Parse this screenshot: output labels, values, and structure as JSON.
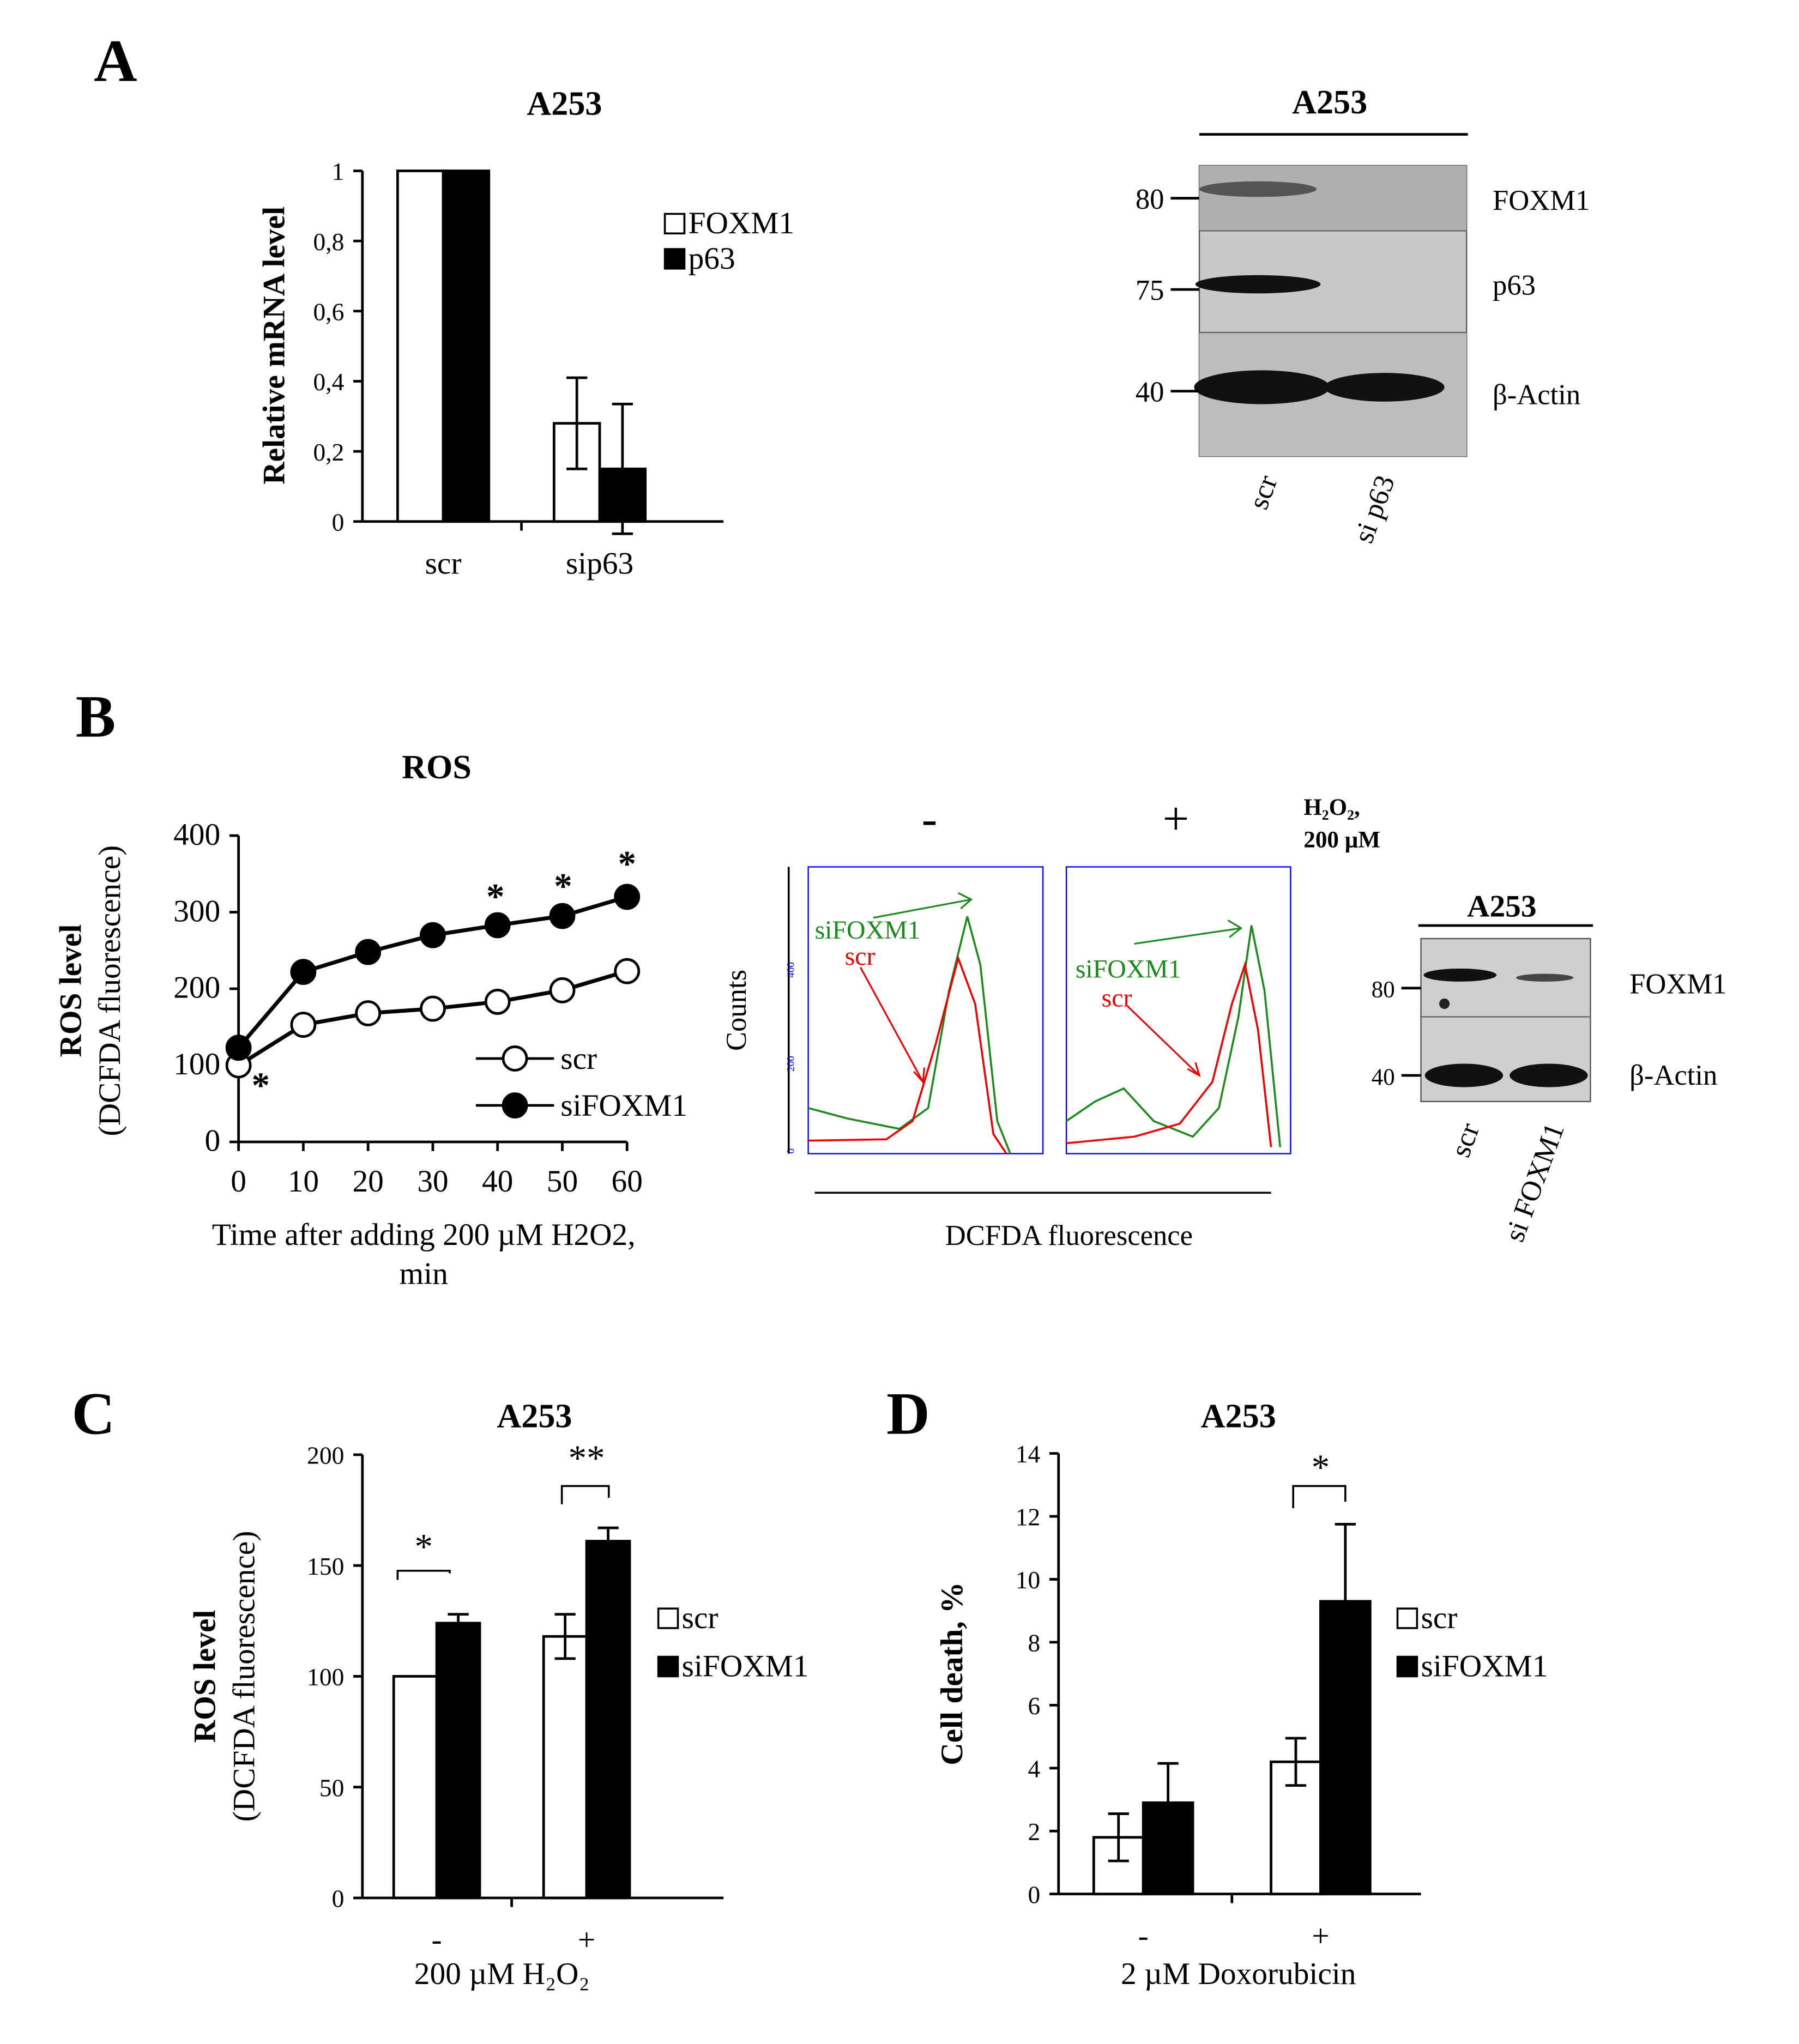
{
  "panels": [
    "A",
    "B",
    "C",
    "D"
  ],
  "blots": [
    {
      "title": "A253",
      "markers": [
        "80",
        "75",
        "40"
      ],
      "proteins": [
        "FOXM1",
        "p63",
        "β-Actin"
      ],
      "lanes": [
        "scr",
        "si p63"
      ]
    },
    {
      "title": "A253",
      "markers": [
        "80",
        "40"
      ],
      "proteins": [
        "FOXM1",
        "β-Actin"
      ],
      "lanes": [
        "scr",
        "si FOXM1"
      ]
    }
  ],
  "flow": {
    "conditions": [
      "-",
      "+"
    ],
    "treatment": [
      "H₂O₂,",
      "200 µM"
    ],
    "ylabel": "Counts",
    "xlabel": "DCFDA fluorescence",
    "curves": [
      "siFOXM1",
      "scr"
    ],
    "yticks": [
      "0",
      "200",
      "400"
    ]
  },
  "chart_data": [
    {
      "type": "bar",
      "title": "A253",
      "categories": [
        "scr",
        "sip63"
      ],
      "series": [
        {
          "name": "FOXM1",
          "color": "#ffffff",
          "values": [
            1,
            0.28
          ],
          "errors": [
            null,
            0.13
          ]
        },
        {
          "name": "p63",
          "color": "#000000",
          "values": [
            1,
            0.15
          ],
          "errors": [
            null,
            0.185
          ]
        }
      ],
      "ylabel": "Relative mRNA level",
      "ylim": [
        0,
        1
      ],
      "yticks": [
        0,
        {
          "value": 0.2,
          "label": "0,2"
        },
        {
          "value": 0.4,
          "label": "0,4"
        },
        {
          "value": 0.6,
          "label": "0,6"
        },
        {
          "value": 0.8,
          "label": "0,8"
        },
        1
      ]
    },
    {
      "type": "line",
      "title": "ROS",
      "x": [
        0,
        10,
        20,
        30,
        40,
        50,
        60
      ],
      "series": [
        {
          "name": "scr",
          "color": "#000000",
          "fill": "#ffffff",
          "values": [
            100,
            153,
            168,
            174,
            183,
            198,
            223
          ]
        },
        {
          "name": "siFOXM1",
          "color": "#000000",
          "fill": "#000000",
          "values": [
            123,
            222,
            248,
            270,
            283,
            295,
            320
          ]
        }
      ],
      "ylabel": "ROS level",
      "ylabel2": "(DCFDA fluorescence)",
      "xlabel": [
        "Time after adding 200 µM H2O2,",
        "min"
      ],
      "xlim": [
        0,
        60
      ],
      "xticks": [
        0,
        10,
        20,
        30,
        40,
        50,
        60
      ],
      "ylim": [
        0,
        400
      ],
      "yticks": [
        0,
        100,
        200,
        300,
        400
      ],
      "annotations": [
        "*",
        "*",
        "*",
        "*"
      ]
    },
    {
      "type": "bar",
      "title": "A253",
      "categories": [
        "-",
        "+"
      ],
      "series": [
        {
          "name": "scr",
          "color": "#ffffff",
          "values": [
            100,
            118
          ],
          "errors": [
            null,
            10
          ]
        },
        {
          "name": "siFOXM1",
          "color": "#000000",
          "values": [
            124,
            161
          ],
          "errors": [
            4,
            6
          ]
        }
      ],
      "ylabel": "ROS level",
      "ylabel2": "(DCFDA fluorescence)",
      "xlabel": "200 µM H₂O₂",
      "ylim": [
        0,
        200
      ],
      "yticks": [
        0,
        50,
        100,
        150,
        200
      ],
      "annotations": [
        "*",
        "**"
      ]
    },
    {
      "type": "bar",
      "title": "A253",
      "categories": [
        "-",
        "+"
      ],
      "series": [
        {
          "name": "scr",
          "color": "#ffffff",
          "values": [
            1.8,
            4.2
          ],
          "errors": [
            0.75,
            0.75
          ]
        },
        {
          "name": "siFOXM1",
          "color": "#000000",
          "values": [
            2.9,
            9.3
          ],
          "errors": [
            1.25,
            2.45
          ]
        }
      ],
      "ylabel": "Cell death, %",
      "xlabel": "2 µM Doxorubicin",
      "ylim": [
        0,
        14
      ],
      "yticks": [
        0,
        2,
        4,
        6,
        8,
        10,
        12,
        14
      ],
      "annotations": [
        "*"
      ]
    }
  ]
}
